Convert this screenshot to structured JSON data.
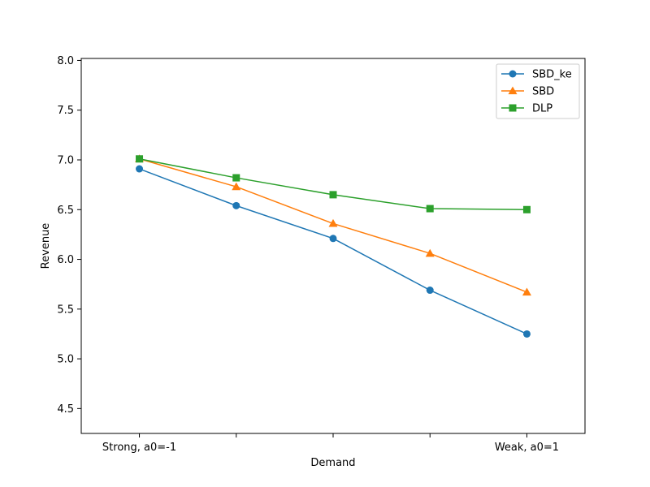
{
  "chart_data": {
    "type": "line",
    "title": "",
    "xlabel": "Demand",
    "ylabel": "Revenue",
    "x": [
      1,
      2,
      3,
      4,
      5
    ],
    "x_tick_labels": [
      "Strong, a0=-1",
      "",
      "",
      "",
      "Weak, a0=1"
    ],
    "xlim": [
      0.4,
      5.6
    ],
    "ylim": [
      4.25,
      8.02
    ],
    "y_ticks": [
      4.5,
      5.0,
      5.5,
      6.0,
      6.5,
      7.0,
      7.5,
      8.0
    ],
    "y_tick_labels": [
      "4.5",
      "5.0",
      "5.5",
      "6.0",
      "6.5",
      "7.0",
      "7.5",
      "8.0"
    ],
    "grid": false,
    "legend_position": "top-right",
    "series": [
      {
        "name": "SBD_ke",
        "marker": "circle",
        "color": "#1f77b4",
        "values": [
          6.91,
          6.54,
          6.21,
          5.69,
          5.25
        ]
      },
      {
        "name": "SBD",
        "marker": "triangle",
        "color": "#ff7f0e",
        "values": [
          7.01,
          6.73,
          6.36,
          6.06,
          5.67
        ]
      },
      {
        "name": "DLP",
        "marker": "square",
        "color": "#2ca02c",
        "values": [
          7.01,
          6.82,
          6.65,
          6.51,
          6.5
        ]
      }
    ]
  }
}
